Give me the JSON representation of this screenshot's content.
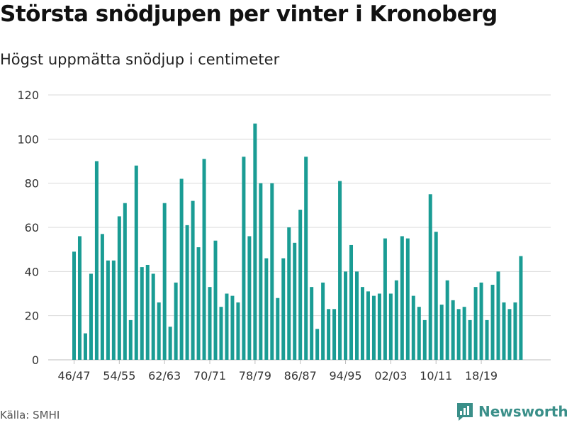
{
  "chart_data": {
    "type": "bar",
    "title": "Största snödjupen per vinter i Kronoberg",
    "subtitle": "Högst uppmätta snödjup i centimeter",
    "xlabel": "",
    "ylabel": "",
    "ylim": [
      0,
      120
    ],
    "yticks": [
      0,
      20,
      40,
      60,
      80,
      100,
      120
    ],
    "xtick_labels": [
      "46/47",
      "54/55",
      "62/63",
      "70/71",
      "78/79",
      "86/87",
      "94/95",
      "02/03",
      "10/11",
      "18/19"
    ],
    "xtick_every": 8,
    "grid": true,
    "bar_color": "#1a9c94",
    "first_season_start": 1946,
    "values": [
      49,
      56,
      12,
      39,
      90,
      57,
      45,
      45,
      65,
      71,
      18,
      88,
      42,
      43,
      39,
      26,
      71,
      15,
      35,
      82,
      61,
      72,
      51,
      91,
      33,
      54,
      24,
      30,
      29,
      26,
      92,
      56,
      107,
      80,
      46,
      80,
      28,
      46,
      60,
      53,
      68,
      92,
      33,
      14,
      35,
      23,
      23,
      81,
      40,
      52,
      40,
      33,
      31,
      29,
      30,
      55,
      30,
      36,
      56,
      55,
      29,
      24,
      18,
      75,
      58,
      25,
      36,
      27,
      23,
      24,
      18,
      33,
      35,
      18,
      34,
      40,
      26,
      23,
      26,
      47
    ]
  },
  "footer": {
    "source": "Källa: SMHI",
    "brand": "Newsworthy"
  },
  "colors": {
    "grid": "#d9d9d9",
    "axis_text": "#333333",
    "brand": "#3a8f89"
  }
}
